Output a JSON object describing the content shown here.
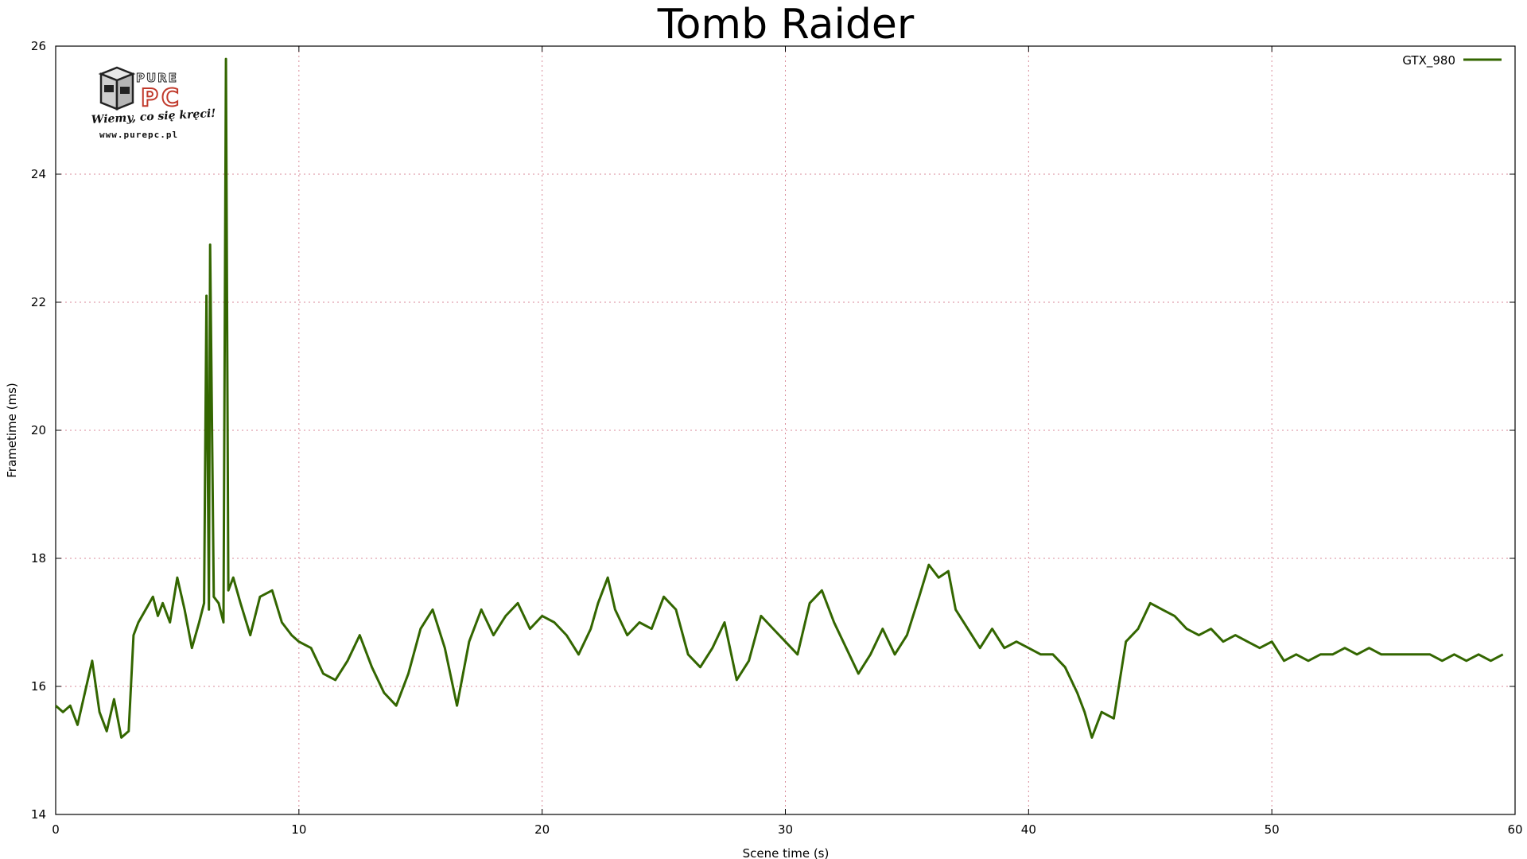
{
  "chart_data": {
    "type": "line",
    "title": "Tomb Raider",
    "xlabel": "Scene time (s)",
    "ylabel": "Frametime (ms)",
    "xlim": [
      0,
      60
    ],
    "ylim": [
      14,
      26
    ],
    "xticks": [
      0,
      10,
      20,
      30,
      40,
      50,
      60
    ],
    "yticks": [
      14,
      16,
      18,
      20,
      22,
      24,
      26
    ],
    "grid": true,
    "legend_position": "top-right",
    "series": [
      {
        "name": "GTX_980",
        "color": "#336600",
        "x": [
          0,
          0.3,
          0.6,
          0.9,
          1.2,
          1.5,
          1.8,
          2.1,
          2.4,
          2.7,
          3.0,
          3.2,
          3.4,
          3.7,
          4.0,
          4.2,
          4.4,
          4.7,
          5.0,
          5.3,
          5.6,
          5.9,
          6.1,
          6.2,
          6.3,
          6.35,
          6.5,
          6.7,
          6.9,
          7.0,
          7.1,
          7.3,
          7.6,
          8.0,
          8.4,
          8.9,
          9.3,
          9.7,
          10.0,
          10.5,
          11.0,
          11.5,
          12.0,
          12.5,
          13.0,
          13.5,
          14.0,
          14.5,
          15.0,
          15.5,
          16.0,
          16.5,
          17.0,
          17.5,
          18.0,
          18.5,
          19.0,
          19.5,
          20.0,
          20.5,
          21.0,
          21.5,
          22.0,
          22.3,
          22.7,
          23.0,
          23.5,
          24.0,
          24.5,
          25.0,
          25.5,
          26.0,
          26.5,
          27.0,
          27.5,
          28.0,
          28.5,
          29.0,
          29.5,
          30.0,
          30.5,
          31.0,
          31.5,
          32.0,
          32.5,
          33.0,
          33.5,
          34.0,
          34.5,
          35.0,
          35.5,
          35.9,
          36.3,
          36.7,
          37.0,
          37.5,
          38.0,
          38.5,
          39.0,
          39.5,
          40.0,
          40.5,
          41.0,
          41.5,
          42.0,
          42.3,
          42.6,
          43.0,
          43.5,
          44.0,
          44.5,
          45.0,
          45.5,
          46.0,
          46.5,
          47.0,
          47.5,
          48.0,
          48.5,
          49.0,
          49.5,
          50.0,
          50.5,
          51.0,
          51.5,
          52.0,
          52.5,
          53.0,
          53.5,
          54.0,
          54.5,
          55.0,
          55.5,
          56.0,
          56.5,
          57.0,
          57.5,
          58.0,
          58.5,
          59.0,
          59.5
        ],
        "y": [
          15.7,
          15.6,
          15.7,
          15.4,
          15.9,
          16.4,
          15.6,
          15.3,
          15.8,
          15.2,
          15.3,
          16.8,
          17.0,
          17.2,
          17.4,
          17.1,
          17.3,
          17.0,
          17.7,
          17.2,
          16.6,
          17.0,
          17.3,
          22.1,
          17.2,
          22.9,
          17.4,
          17.3,
          17.0,
          25.8,
          17.5,
          17.7,
          17.3,
          16.8,
          17.4,
          17.5,
          17.0,
          16.8,
          16.7,
          16.6,
          16.2,
          16.1,
          16.4,
          16.8,
          16.3,
          15.9,
          15.7,
          16.2,
          16.9,
          17.2,
          16.6,
          15.7,
          16.7,
          17.2,
          16.8,
          17.1,
          17.3,
          16.9,
          17.1,
          17.0,
          16.8,
          16.5,
          16.9,
          17.3,
          17.7,
          17.2,
          16.8,
          17.0,
          16.9,
          17.4,
          17.2,
          16.5,
          16.3,
          16.6,
          17.0,
          16.1,
          16.4,
          17.1,
          16.9,
          16.7,
          16.5,
          17.3,
          17.5,
          17.0,
          16.6,
          16.2,
          16.5,
          16.9,
          16.5,
          16.8,
          17.4,
          17.9,
          17.7,
          17.8,
          17.2,
          16.9,
          16.6,
          16.9,
          16.6,
          16.7,
          16.6,
          16.5,
          16.5,
          16.3,
          15.9,
          15.6,
          15.2,
          15.6,
          15.5,
          16.7,
          16.9,
          17.3,
          17.2,
          17.1,
          16.9,
          16.8,
          16.9,
          16.7,
          16.8,
          16.7,
          16.6,
          16.7,
          16.4,
          16.5,
          16.4,
          16.5,
          16.5,
          16.6,
          16.5,
          16.6,
          16.5,
          16.5,
          16.5,
          16.5,
          16.5,
          16.4,
          16.5,
          16.4,
          16.5,
          16.4,
          16.5
        ]
      }
    ]
  },
  "logo": {
    "brand_top": "PURE",
    "brand_bottom": "PC",
    "slogan": "Wiemy, co się kręci!",
    "url": "www.purepc.pl"
  }
}
